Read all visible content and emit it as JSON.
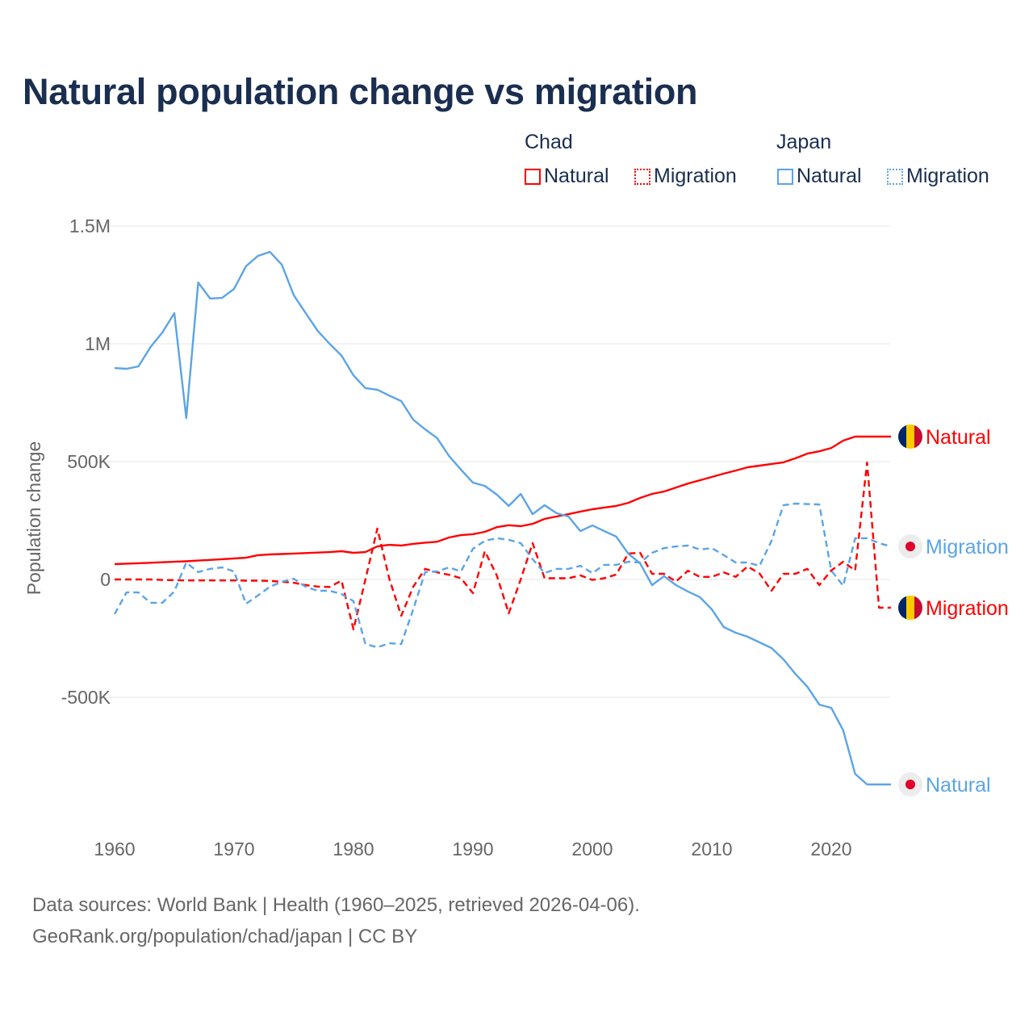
{
  "chart_data": {
    "type": "line",
    "title": "Natural population change vs migration",
    "xlabel": "",
    "ylabel": "Population change",
    "xlim": [
      1960,
      2025
    ],
    "ylim": [
      -1000000,
      1500000
    ],
    "x_ticks": [
      1960,
      1970,
      1980,
      1990,
      2000,
      2010,
      2020
    ],
    "x_tick_labels": [
      "1960",
      "1970",
      "1980",
      "1990",
      "2000",
      "2010",
      "2020"
    ],
    "y_ticks": [
      1500000,
      1000000,
      500000,
      0,
      -500000
    ],
    "y_tick_labels": [
      "1.5M",
      "1M",
      "500K",
      "0",
      "-500K"
    ],
    "grid": true,
    "legend_placement": "top-right",
    "legend_groups": [
      "Chad",
      "Japan"
    ],
    "x": [
      1960,
      1961,
      1962,
      1963,
      1964,
      1965,
      1966,
      1967,
      1968,
      1969,
      1970,
      1971,
      1972,
      1973,
      1974,
      1975,
      1976,
      1977,
      1978,
      1979,
      1980,
      1981,
      1982,
      1983,
      1984,
      1985,
      1986,
      1987,
      1988,
      1989,
      1990,
      1991,
      1992,
      1993,
      1994,
      1995,
      1996,
      1997,
      1998,
      1999,
      2000,
      2001,
      2002,
      2003,
      2004,
      2005,
      2006,
      2007,
      2008,
      2009,
      2010,
      2011,
      2012,
      2013,
      2014,
      2015,
      2016,
      2017,
      2018,
      2019,
      2020,
      2021,
      2022,
      2023,
      2024,
      2025
    ],
    "series": [
      {
        "name": "Natural",
        "country": "Chad",
        "color": "#ff0000",
        "dashed": false,
        "end_label": "Natural",
        "values_k": [
          65,
          67,
          69,
          71,
          73,
          75,
          77,
          80,
          83,
          86,
          89,
          92,
          103,
          106,
          108,
          110,
          112,
          114,
          116,
          120,
          113,
          116,
          140,
          147,
          144,
          151,
          156,
          160,
          178,
          188,
          192,
          202,
          222,
          230,
          226,
          236,
          257,
          267,
          277,
          288,
          298,
          305,
          312,
          325,
          346,
          363,
          373,
          390,
          407,
          421,
          435,
          449,
          462,
          476,
          483,
          490,
          497,
          514,
          534,
          544,
          558,
          589,
          606,
          606,
          606,
          606
        ]
      },
      {
        "name": "Migration",
        "country": "Chad",
        "color": "#ff0000",
        "dashed": true,
        "end_label": "Migration",
        "values_k": [
          0,
          0,
          0,
          0,
          -2,
          -3,
          -4,
          -4,
          -4,
          -4,
          -4,
          -5,
          -5,
          -6,
          -10,
          -14,
          -24,
          -30,
          -32,
          -5,
          -212,
          0,
          216,
          3,
          -154,
          -31,
          45,
          30,
          20,
          5,
          -58,
          120,
          17,
          -144,
          0,
          154,
          5,
          5,
          5,
          17,
          -2,
          5,
          21,
          110,
          113,
          24,
          24,
          -9,
          37,
          11,
          11,
          30,
          11,
          55,
          25,
          -48,
          24,
          24,
          45,
          -24,
          38,
          75,
          38,
          496,
          -120,
          -120
        ]
      },
      {
        "name": "Natural",
        "country": "Japan",
        "color": "#5ba4e6",
        "dashed": false,
        "end_label": "Natural",
        "values_k": [
          897,
          894,
          904,
          986,
          1048,
          1130,
          685,
          1260,
          1192,
          1195,
          1233,
          1329,
          1373,
          1390,
          1336,
          1206,
          1130,
          1055,
          1000,
          950,
          866,
          812,
          805,
          780,
          757,
          678,
          637,
          600,
          524,
          466,
          411,
          397,
          360,
          312,
          363,
          277,
          315,
          281,
          267,
          205,
          229,
          205,
          182,
          110,
          68,
          -24,
          14,
          -24,
          -51,
          -75,
          -127,
          -202,
          -226,
          -243,
          -267,
          -291,
          -339,
          -401,
          -455,
          -531,
          -545,
          -640,
          -825,
          -870,
          -870,
          -870
        ]
      },
      {
        "name": "Migration",
        "country": "Japan",
        "color": "#5ba4e6",
        "dashed": true,
        "end_label": "Migration",
        "values_k": [
          -147,
          -55,
          -55,
          -99,
          -99,
          -51,
          72,
          31,
          45,
          51,
          34,
          -103,
          -68,
          -31,
          -10,
          3,
          -31,
          -48,
          -48,
          -62,
          -92,
          -274,
          -288,
          -271,
          -274,
          -127,
          31,
          34,
          51,
          34,
          130,
          164,
          175,
          168,
          154,
          86,
          27,
          45,
          45,
          58,
          27,
          62,
          62,
          75,
          72,
          113,
          133,
          140,
          144,
          127,
          133,
          103,
          72,
          72,
          58,
          164,
          315,
          322,
          320,
          318,
          38,
          -27,
          175,
          175,
          154,
          140
        ]
      }
    ]
  },
  "legend": {
    "groups": [
      {
        "label": "Chad",
        "items": [
          "Natural",
          "Migration"
        ]
      },
      {
        "label": "Japan",
        "items": [
          "Natural",
          "Migration"
        ]
      }
    ]
  },
  "footer": {
    "line1": "Data sources: World Bank | Health (1960–2025, retrieved 2026-04-06).",
    "line2": "GeoRank.org/population/chad/japan | CC BY"
  },
  "colors": {
    "title": "#1a2e50",
    "chad": "#ff0000",
    "japan": "#5ba4e6",
    "grid": "#e6e6e6",
    "axis_text": "#666666"
  }
}
